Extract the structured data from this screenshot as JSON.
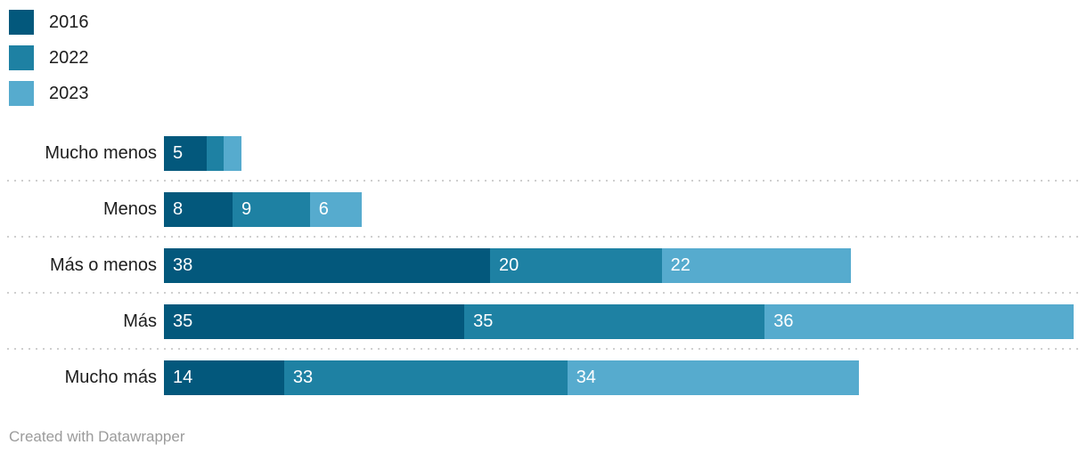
{
  "chart_data": {
    "type": "bar",
    "stacked": true,
    "orientation": "horizontal",
    "categories": [
      "Mucho menos",
      "Menos",
      "Más o menos",
      "Más",
      "Mucho más"
    ],
    "series": [
      {
        "name": "2016",
        "color": "#03587c",
        "values": [
          5,
          8,
          38,
          35,
          14
        ]
      },
      {
        "name": "2022",
        "color": "#1e81a3",
        "values": [
          2,
          9,
          20,
          35,
          33
        ]
      },
      {
        "name": "2023",
        "color": "#56abce",
        "values": [
          2,
          6,
          22,
          36,
          34
        ]
      }
    ],
    "row_totals": [
      9,
      23,
      80,
      106,
      81
    ],
    "xmax": 106,
    "value_label_min": 4,
    "legend_position": "top-left",
    "grid": "dotted-row-separators",
    "title": "",
    "xlabel": "",
    "ylabel": ""
  },
  "colors": {
    "category_label": "#1d1d1d",
    "value_label": "#ffffff",
    "separator": "#cfcfcf",
    "credit": "#9b9b9b",
    "background": "#ffffff"
  },
  "footer": {
    "credit": "Created with Datawrapper"
  }
}
